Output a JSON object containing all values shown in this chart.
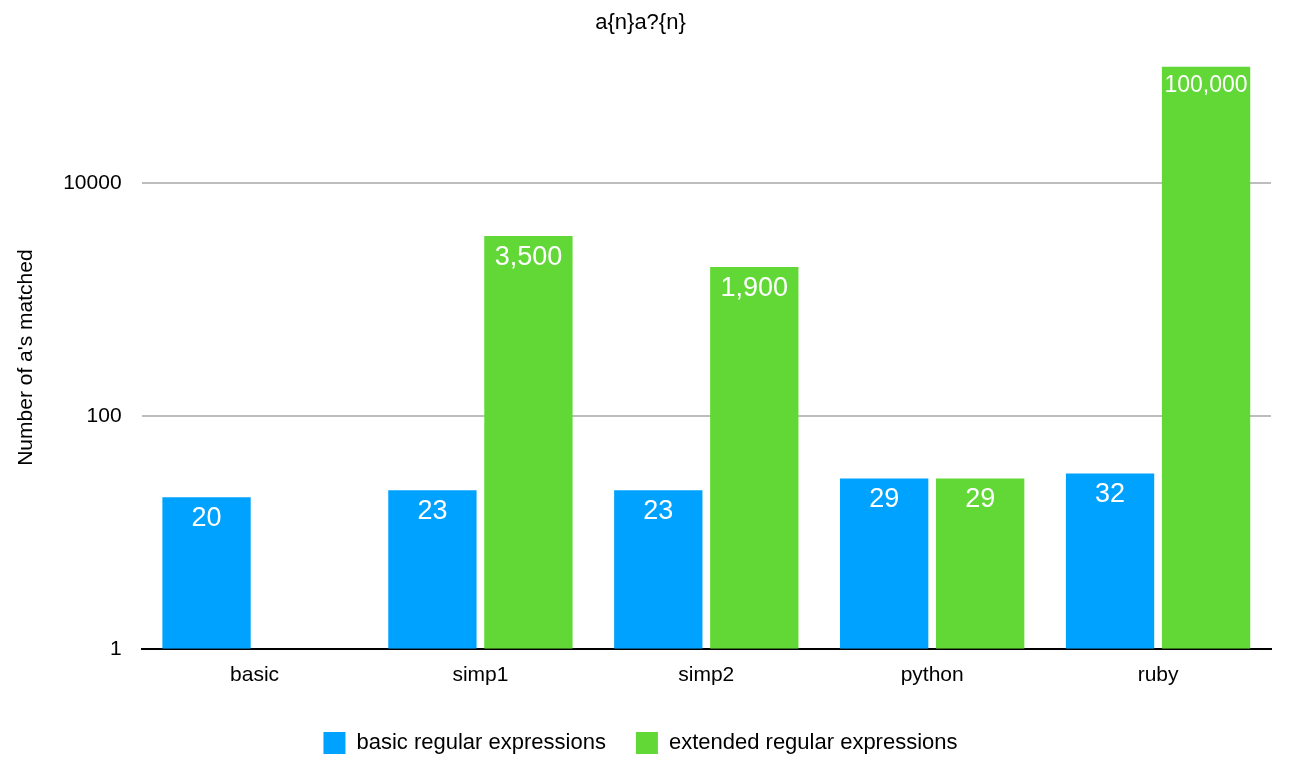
{
  "chart_data": {
    "type": "bar",
    "title": "a{n}a?{n}",
    "ylabel": "Number of a's matched",
    "categories": [
      "basic",
      "simp1",
      "simp2",
      "python",
      "ruby"
    ],
    "series": [
      {
        "name": "basic regular expressions",
        "color": "#00a2ff",
        "values": [
          20,
          23,
          23,
          29,
          32
        ],
        "value_labels": [
          "20",
          "23",
          "23",
          "29",
          "32"
        ]
      },
      {
        "name": "extended regular expressions",
        "color": "#61d836",
        "values": [
          null,
          3500,
          1900,
          29,
          100000
        ],
        "value_labels": [
          null,
          "3,500",
          "1,900",
          "29",
          "100,000"
        ]
      }
    ],
    "log": "y",
    "ylim": [
      1,
      100000
    ],
    "yticks": [
      1,
      100,
      10000
    ],
    "grid": "y",
    "legend": "bottom"
  }
}
